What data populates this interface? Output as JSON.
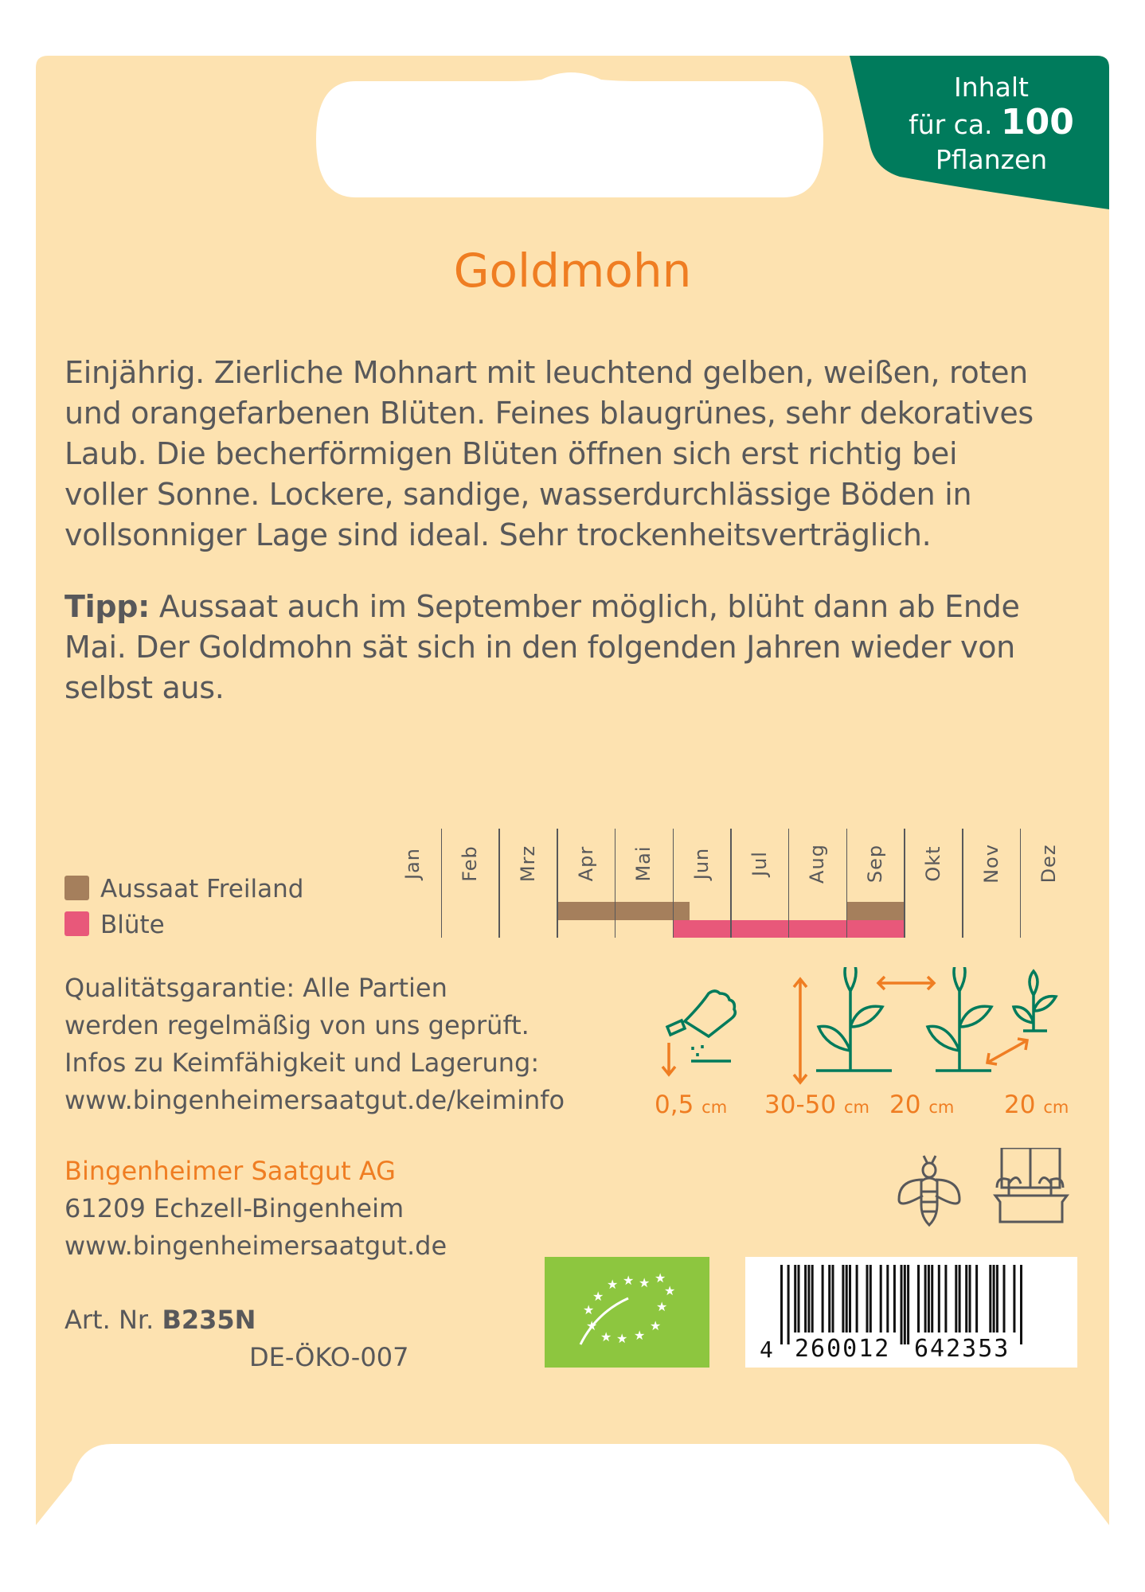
{
  "badge": {
    "line1": "Inhalt",
    "line2_prefix": "für ca.",
    "count": "100",
    "line3": "Pflanzen"
  },
  "title": "Goldmohn",
  "description_lines": [
    "Einjährig. Zierliche Mohnart mit leuchtend gelben, weißen, roten",
    "und orangefarbenen Blüten. Feines blaugrünes, sehr dekoratives",
    "Laub. Die becherförmigen Blüten öffnen sich erst richtig bei",
    "voller Sonne. Lockere, sandige, wasserdurchlässige Böden in",
    "vollsonniger Lage sind ideal. Sehr trockenheitsverträglich."
  ],
  "tip": {
    "label": "Tipp:",
    "lines": [
      " Aussaat auch im September möglich, blüht dann ab Ende",
      "Mai. Der Goldmohn sät sich in den folgenden Jahren wieder von",
      "selbst aus."
    ]
  },
  "calendar": {
    "months": [
      "Jan",
      "Feb",
      "Mrz",
      "Apr",
      "Mai",
      "Jun",
      "Jul",
      "Aug",
      "Sep",
      "Okt",
      "Nov",
      "Dez"
    ],
    "legend": [
      {
        "label": "Aussaat Freiland",
        "color": "#a57f5c"
      },
      {
        "label": "Blüte",
        "color": "#e8587a"
      }
    ],
    "sowing_periods": [
      {
        "from_month": 4,
        "to_month": 6.3
      },
      {
        "from_month": 9,
        "to_month": 10
      }
    ],
    "bloom_periods": [
      {
        "from_month": 6,
        "to_month": 10
      }
    ]
  },
  "quality": {
    "lines": [
      "Qualitätsgarantie: Alle Partien",
      "werden regelmäßig von uns geprüft.",
      "Infos zu Keimfähigkeit und Lagerung:"
    ],
    "link": "www.bingenheimersaatgut.de/keiminfo"
  },
  "dimensions": [
    {
      "icon": "sowing-depth-icon",
      "value": "0,5",
      "unit": "cm"
    },
    {
      "icon": "plant-height-icon",
      "value": "30-50",
      "unit": "cm"
    },
    {
      "icon": "row-spacing-icon",
      "value": "20",
      "unit": "cm"
    },
    {
      "icon": "plant-spacing-icon",
      "value": "20",
      "unit": "cm"
    }
  ],
  "company": {
    "name": "Bingenheimer Saatgut AG",
    "address": "61209 Echzell-Bingenheim",
    "website": "www.bingenheimersaatgut.de"
  },
  "article": {
    "label": "Art. Nr.",
    "number": "B235N",
    "control_code": "DE-ÖKO-007"
  },
  "barcode": {
    "digits_first": "4",
    "digits_left": "260012",
    "digits_right": "642353"
  },
  "colors": {
    "card": "#fde2b0",
    "green": "#007b5c",
    "orange": "#ef7d22",
    "text": "#58585a",
    "eu_green": "#8dc63f"
  }
}
